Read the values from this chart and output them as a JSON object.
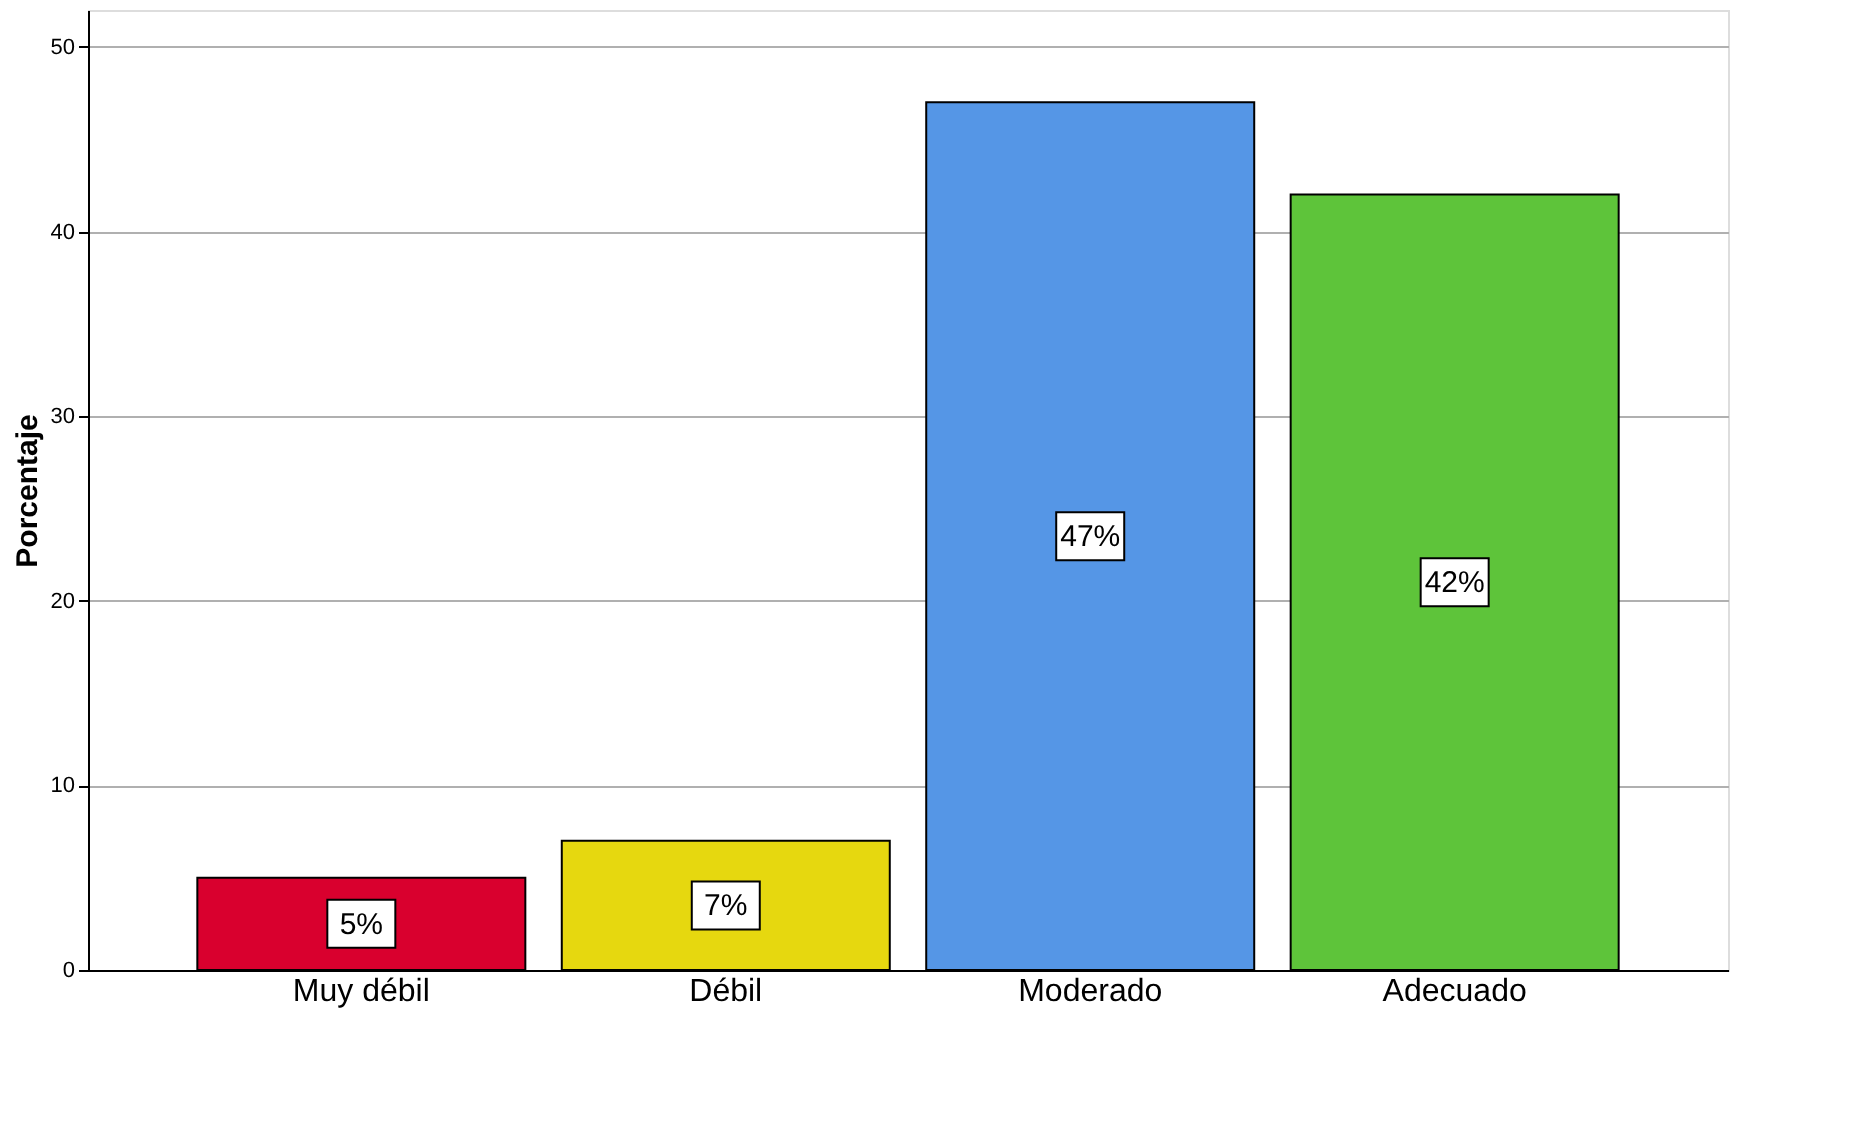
{
  "chart_data": {
    "type": "bar",
    "ylabel": "Porcentaje",
    "categories": [
      "Muy débil",
      "Débil",
      "Moderado",
      "Adecuado"
    ],
    "values": [
      5,
      7,
      47,
      42
    ],
    "colors": [
      "#d9002e",
      "#e6d80f",
      "#5596e6",
      "#5ec43a"
    ],
    "value_labels": [
      "5%",
      "7%",
      "47%",
      "42%"
    ],
    "ylim": [
      0,
      52
    ],
    "yticks": [
      0,
      10,
      20,
      30,
      40,
      50
    ],
    "grid": "y",
    "legend": false
  }
}
